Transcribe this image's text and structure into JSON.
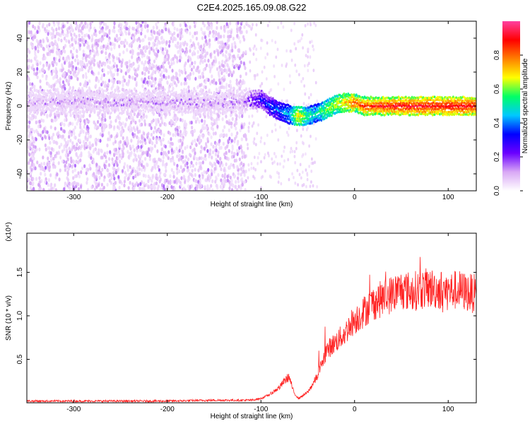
{
  "title": "C2E4.2025.165.09.08.G22",
  "chart_data": [
    {
      "type": "heatmap",
      "xlabel": "Height of straight line (km)",
      "ylabel": "Frequency (Hz)",
      "xlim": [
        -350,
        130
      ],
      "ylim": [
        -50,
        50
      ],
      "xticks": [
        -300,
        -200,
        -100,
        0,
        100
      ],
      "yticks": [
        -40,
        -20,
        0,
        20,
        40
      ],
      "colorbar": {
        "label": "Normalized spectral amplitude",
        "range": [
          0.0,
          1.0
        ],
        "ticks": [
          "0.0",
          "0.2",
          "0.4",
          "0.6",
          "0.8"
        ],
        "colors": [
          "#ffffff",
          "#d9a8f5",
          "#6a00ff",
          "#0000ff",
          "#00c8ff",
          "#00ff66",
          "#ffff00",
          "#ff8000",
          "#ff0000",
          "#ff40a0"
        ]
      },
      "ridge": {
        "x": [
          -350,
          -300,
          -250,
          -200,
          -150,
          -120,
          -100,
          -90,
          -80,
          -70,
          -60,
          -50,
          -40,
          -30,
          -20,
          -10,
          0,
          10,
          50,
          100,
          130
        ],
        "frequency": [
          2,
          3,
          2,
          3,
          2,
          3,
          4,
          0,
          -3,
          -5,
          -6,
          -6,
          -4,
          -2,
          1,
          2,
          2,
          0,
          0,
          0,
          0
        ],
        "amplitude": [
          0.1,
          0.12,
          0.12,
          0.12,
          0.12,
          0.15,
          0.3,
          0.35,
          0.4,
          0.45,
          0.7,
          0.55,
          0.5,
          0.6,
          0.65,
          0.7,
          0.8,
          0.85,
          0.9,
          0.9,
          0.9
        ]
      }
    },
    {
      "type": "line",
      "xlabel": "Height of straight line (km)",
      "ylabel": "SNR (10 * v/v)",
      "y_scale_label": "(x10⁴)",
      "xlim": [
        -350,
        130
      ],
      "ylim": [
        0,
        1.95
      ],
      "xticks": [
        -300,
        -200,
        -100,
        0,
        100
      ],
      "yticks": [
        0.5,
        1.0,
        1.5
      ],
      "series": [
        {
          "color": "#ff2020",
          "x": [
            -350,
            -300,
            -250,
            -200,
            -150,
            -110,
            -100,
            -90,
            -80,
            -75,
            -70,
            -65,
            -60,
            -50,
            -40,
            -35,
            -30,
            -25,
            -20,
            -15,
            -10,
            -5,
            0,
            10,
            20,
            30,
            40,
            50,
            60,
            70,
            80,
            90,
            100,
            110,
            120,
            130
          ],
          "y": [
            0.02,
            0.02,
            0.02,
            0.02,
            0.03,
            0.03,
            0.05,
            0.1,
            0.18,
            0.25,
            0.3,
            0.12,
            0.05,
            0.12,
            0.3,
            0.45,
            0.6,
            0.65,
            0.7,
            0.75,
            0.8,
            0.9,
            0.95,
            1.05,
            1.15,
            1.2,
            1.25,
            1.3,
            1.28,
            1.3,
            1.32,
            1.3,
            1.28,
            1.3,
            1.27,
            1.25
          ]
        }
      ]
    }
  ]
}
